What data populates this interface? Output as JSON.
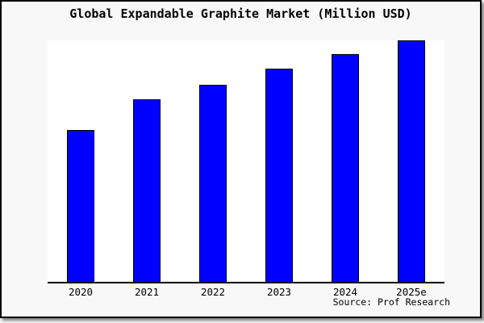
{
  "colors": {
    "figure_background": "#f8f8f8",
    "plot_background": "#ffffff",
    "bar_fill": "#0000fe",
    "bar_border": "#000000",
    "axis_line": "#000000",
    "text": "#000000"
  },
  "chart_data": {
    "type": "bar",
    "title": "Global Expandable Graphite Market (Million USD)",
    "categories": [
      "2020",
      "2021",
      "2022",
      "2023",
      "2024",
      "2025e"
    ],
    "values": [
      63,
      75.5,
      81.5,
      88.2,
      94.3,
      100
    ],
    "xlabel": "",
    "ylabel": "",
    "ylim": [
      0,
      100
    ],
    "grid": false,
    "legend": null,
    "y_axis_visible": false,
    "source": "Source: Prof Research"
  }
}
